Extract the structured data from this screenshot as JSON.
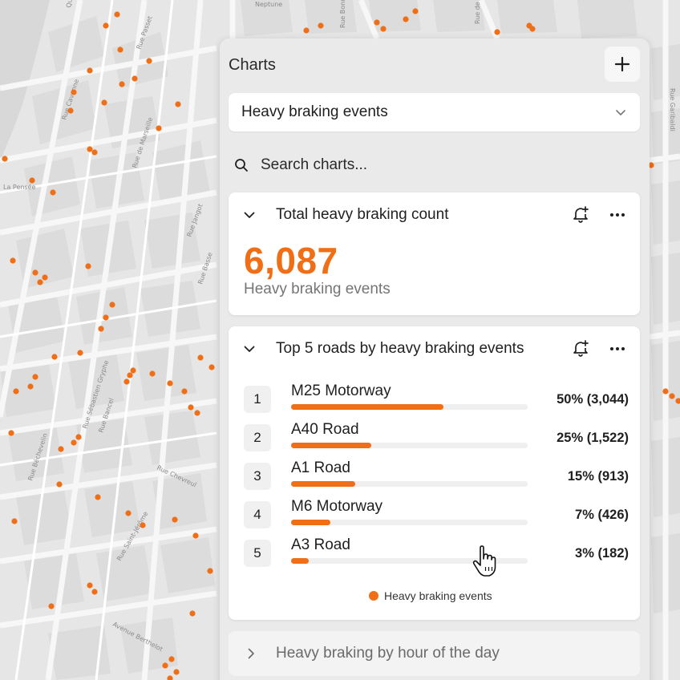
{
  "map": {
    "street_labels": [
      "Quai Claude Bernard",
      "Rue Passet",
      "Rue Cavenne",
      "Rue de Marseille",
      "Rue Jangot",
      "Rue Basse",
      "Rue Garibaldi",
      "La Pensée",
      "Rue de Créqui",
      "Rue Bonnel",
      "Avenue Berthelot",
      "Rue Chevreul",
      "Rue Bancel",
      "Rue Sébastien Gryphe",
      "Rue Saint-Jérôme",
      "Rue Béchevelin",
      "Neptune"
    ],
    "accent_color": "#f06e16"
  },
  "panel": {
    "title": "Charts",
    "add_icon": "plus-icon",
    "dataset_select": {
      "value": "Heavy braking events",
      "icon": "chevron-down-icon"
    },
    "search": {
      "placeholder": "Search charts...",
      "icon": "search-icon"
    }
  },
  "kpi_card": {
    "title": "Total heavy braking count",
    "value": "6,087",
    "label": "Heavy braking events",
    "icons": [
      "chevron-down-icon",
      "bell-plus-icon",
      "more-icon"
    ]
  },
  "roads_card": {
    "title": "Top 5 roads by heavy braking events",
    "legend": "Heavy braking events",
    "icons": [
      "chevron-down-icon",
      "bell-plus-icon",
      "more-icon"
    ],
    "rows": [
      {
        "rank": "1",
        "name": "M25 Motorway",
        "pct_label": "50% (3,044)",
        "fraction": 0.645
      },
      {
        "rank": "2",
        "name": "A40 Road",
        "pct_label": "25% (1,522)",
        "fraction": 0.34
      },
      {
        "rank": "3",
        "name": "A1 Road",
        "pct_label": "15% (913)",
        "fraction": 0.27
      },
      {
        "rank": "4",
        "name": "M6 Motorway",
        "pct_label": "7% (426)",
        "fraction": 0.165
      },
      {
        "rank": "5",
        "name": "A3 Road",
        "pct_label": "3% (182)",
        "fraction": 0.075
      }
    ]
  },
  "collapsed_card": {
    "title": "Heavy braking by hour of the day",
    "icon": "chevron-right-icon"
  },
  "cursor": "hand-pointer-icon"
}
